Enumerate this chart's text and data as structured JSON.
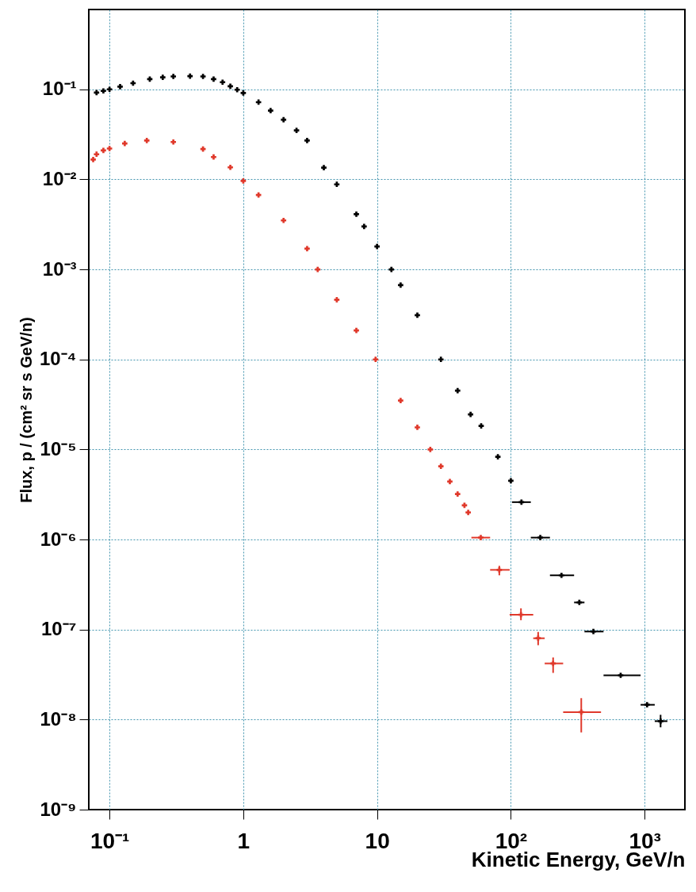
{
  "chart_data": {
    "type": "scatter",
    "xlabel": "Kinetic Energy, GeV/n",
    "ylabel": "Flux,  p / (cm² sr s GeV/n)",
    "log": "xy",
    "grid": true,
    "marker": "cross",
    "xlim": [
      0.07,
      2000
    ],
    "ylim": [
      1e-09,
      0.77
    ],
    "xticks": [
      {
        "value": 0.1,
        "label": "10⁻¹"
      },
      1,
      10,
      {
        "value": 100,
        "label": "10²"
      },
      {
        "value": 1000,
        "label": "10³"
      }
    ],
    "yticks": [
      {
        "value": 1e-09,
        "label": "10⁻⁹"
      },
      {
        "value": 1e-08,
        "label": "10⁻⁸"
      },
      {
        "value": 1e-07,
        "label": "10⁻⁷"
      },
      {
        "value": 1e-06,
        "label": "10⁻⁶"
      },
      {
        "value": 1e-05,
        "label": "10⁻⁵"
      },
      {
        "value": 0.0001,
        "label": "10⁻⁴"
      },
      {
        "value": 0.001,
        "label": "10⁻³"
      },
      {
        "value": 0.01,
        "label": "10⁻²"
      },
      {
        "value": 0.1,
        "label": "10⁻¹"
      }
    ],
    "series": [
      {
        "color": "#000000",
        "x": [
          0.08,
          0.09,
          0.1,
          0.12,
          0.15,
          0.2,
          0.25,
          0.3,
          0.4,
          0.5,
          0.6,
          0.7,
          0.8,
          0.9,
          1,
          1.3,
          1.6,
          2,
          2.5,
          3,
          4,
          5,
          7,
          8,
          10,
          12.8,
          15,
          20,
          30,
          40,
          50,
          60,
          80,
          100,
          120,
          166,
          239,
          325,
          414,
          662,
          1043,
          1316
        ],
        "values": [
          0.092,
          0.096,
          0.1,
          0.107,
          0.117,
          0.13,
          0.136,
          0.139,
          0.14,
          0.139,
          0.13,
          0.12,
          0.108,
          0.099,
          0.091,
          0.072,
          0.058,
          0.046,
          0.035,
          0.027,
          0.0135,
          0.0088,
          0.0041,
          0.003,
          0.0018,
          0.001,
          0.00067,
          0.00031,
          0.0001,
          4.5e-05,
          2.45e-05,
          1.83e-05,
          8.3e-06,
          4.5e-06,
          2.6e-06,
          1.05e-06,
          4e-07,
          2e-07,
          9.5e-08,
          3.1e-08,
          1.46e-08,
          9.6e-09
        ],
        "xerrors": [
          null,
          null,
          null,
          null,
          null,
          null,
          null,
          null,
          null,
          null,
          null,
          null,
          null,
          null,
          null,
          null,
          null,
          null,
          null,
          null,
          null,
          null,
          null,
          null,
          null,
          null,
          null,
          null,
          null,
          null,
          null,
          null,
          null,
          null,
          [
            102,
            141
          ],
          [
            141,
            196
          ],
          [
            196,
            297
          ],
          [
            297,
            355
          ],
          [
            355,
            493
          ],
          [
            493,
            933
          ],
          [
            933,
            1190
          ],
          [
            1190,
            1480
          ]
        ],
        "errors": [
          null,
          null,
          null,
          null,
          null,
          null,
          null,
          null,
          null,
          null,
          null,
          null,
          null,
          null,
          null,
          null,
          null,
          null,
          null,
          null,
          null,
          null,
          null,
          null,
          null,
          null,
          null,
          null,
          null,
          null,
          null,
          null,
          null,
          null,
          null,
          null,
          null,
          null,
          null,
          null,
          null,
          [
            8.2e-09,
            1.13e-08
          ]
        ]
      },
      {
        "color": "#e0392b",
        "x": [
          0.0755,
          0.08,
          0.09,
          0.1,
          0.13,
          0.19,
          0.3,
          0.5,
          0.6,
          0.8,
          1,
          1.3,
          2,
          3,
          3.6,
          5,
          7,
          9.75,
          15,
          20,
          25,
          30,
          35,
          40,
          45,
          48,
          59.6,
          82,
          119,
          160,
          207,
          336
        ],
        "values": [
          0.0166,
          0.019,
          0.021,
          0.022,
          0.025,
          0.027,
          0.026,
          0.0217,
          0.0177,
          0.0136,
          0.0096,
          0.0067,
          0.0035,
          0.0017,
          0.001,
          0.00046,
          0.00021,
          0.0001,
          3.5e-05,
          1.76e-05,
          1e-05,
          6.5e-06,
          4.4e-06,
          3.2e-06,
          2.4e-06,
          2e-06,
          1.05e-06,
          4.6e-07,
          1.46e-07,
          8e-08,
          4.2e-08,
          1.21e-08
        ],
        "xerrors": [
          null,
          null,
          null,
          null,
          null,
          null,
          null,
          null,
          null,
          null,
          null,
          null,
          null,
          null,
          null,
          null,
          null,
          null,
          null,
          null,
          null,
          null,
          null,
          null,
          null,
          null,
          [
            50.7,
            70
          ],
          [
            70,
            98
          ],
          [
            98,
            147
          ],
          [
            147,
            179
          ],
          [
            179,
            246
          ],
          [
            246,
            472
          ]
        ],
        "errors": [
          null,
          null,
          null,
          null,
          null,
          null,
          null,
          null,
          null,
          null,
          null,
          null,
          null,
          null,
          null,
          null,
          null,
          null,
          null,
          null,
          null,
          null,
          null,
          null,
          null,
          null,
          null,
          [
            4e-07,
            5.1e-07
          ],
          [
            1.27e-07,
            1.72e-07
          ],
          [
            6.7e-08,
            9.4e-08
          ],
          [
            3.3e-08,
            4.9e-08
          ],
          [
            7.2e-09,
            1.73e-08
          ]
        ]
      }
    ]
  }
}
